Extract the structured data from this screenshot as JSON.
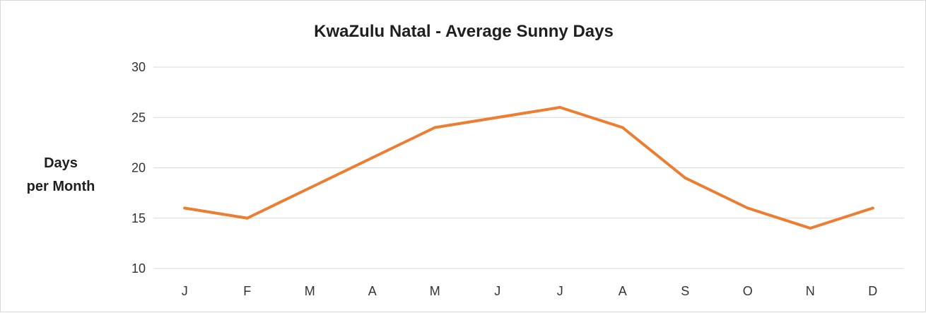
{
  "chart_data": {
    "type": "line",
    "title": "KwaZulu Natal - Average Sunny Days",
    "ylabel_lines": [
      "Days",
      "per Month"
    ],
    "xlabel": "",
    "categories": [
      "J",
      "F",
      "M",
      "A",
      "M",
      "J",
      "J",
      "A",
      "S",
      "O",
      "N",
      "D"
    ],
    "series": [
      {
        "values": [
          16,
          15,
          18,
          21,
          24,
          25,
          26,
          24,
          19,
          16,
          14,
          16
        ]
      }
    ],
    "ylim": [
      10,
      30
    ],
    "yticks": [
      10,
      15,
      20,
      25,
      30
    ],
    "grid": true,
    "legend": "none",
    "colors": {
      "line": "#ED7D31",
      "grid": "#D9D9D9"
    }
  }
}
